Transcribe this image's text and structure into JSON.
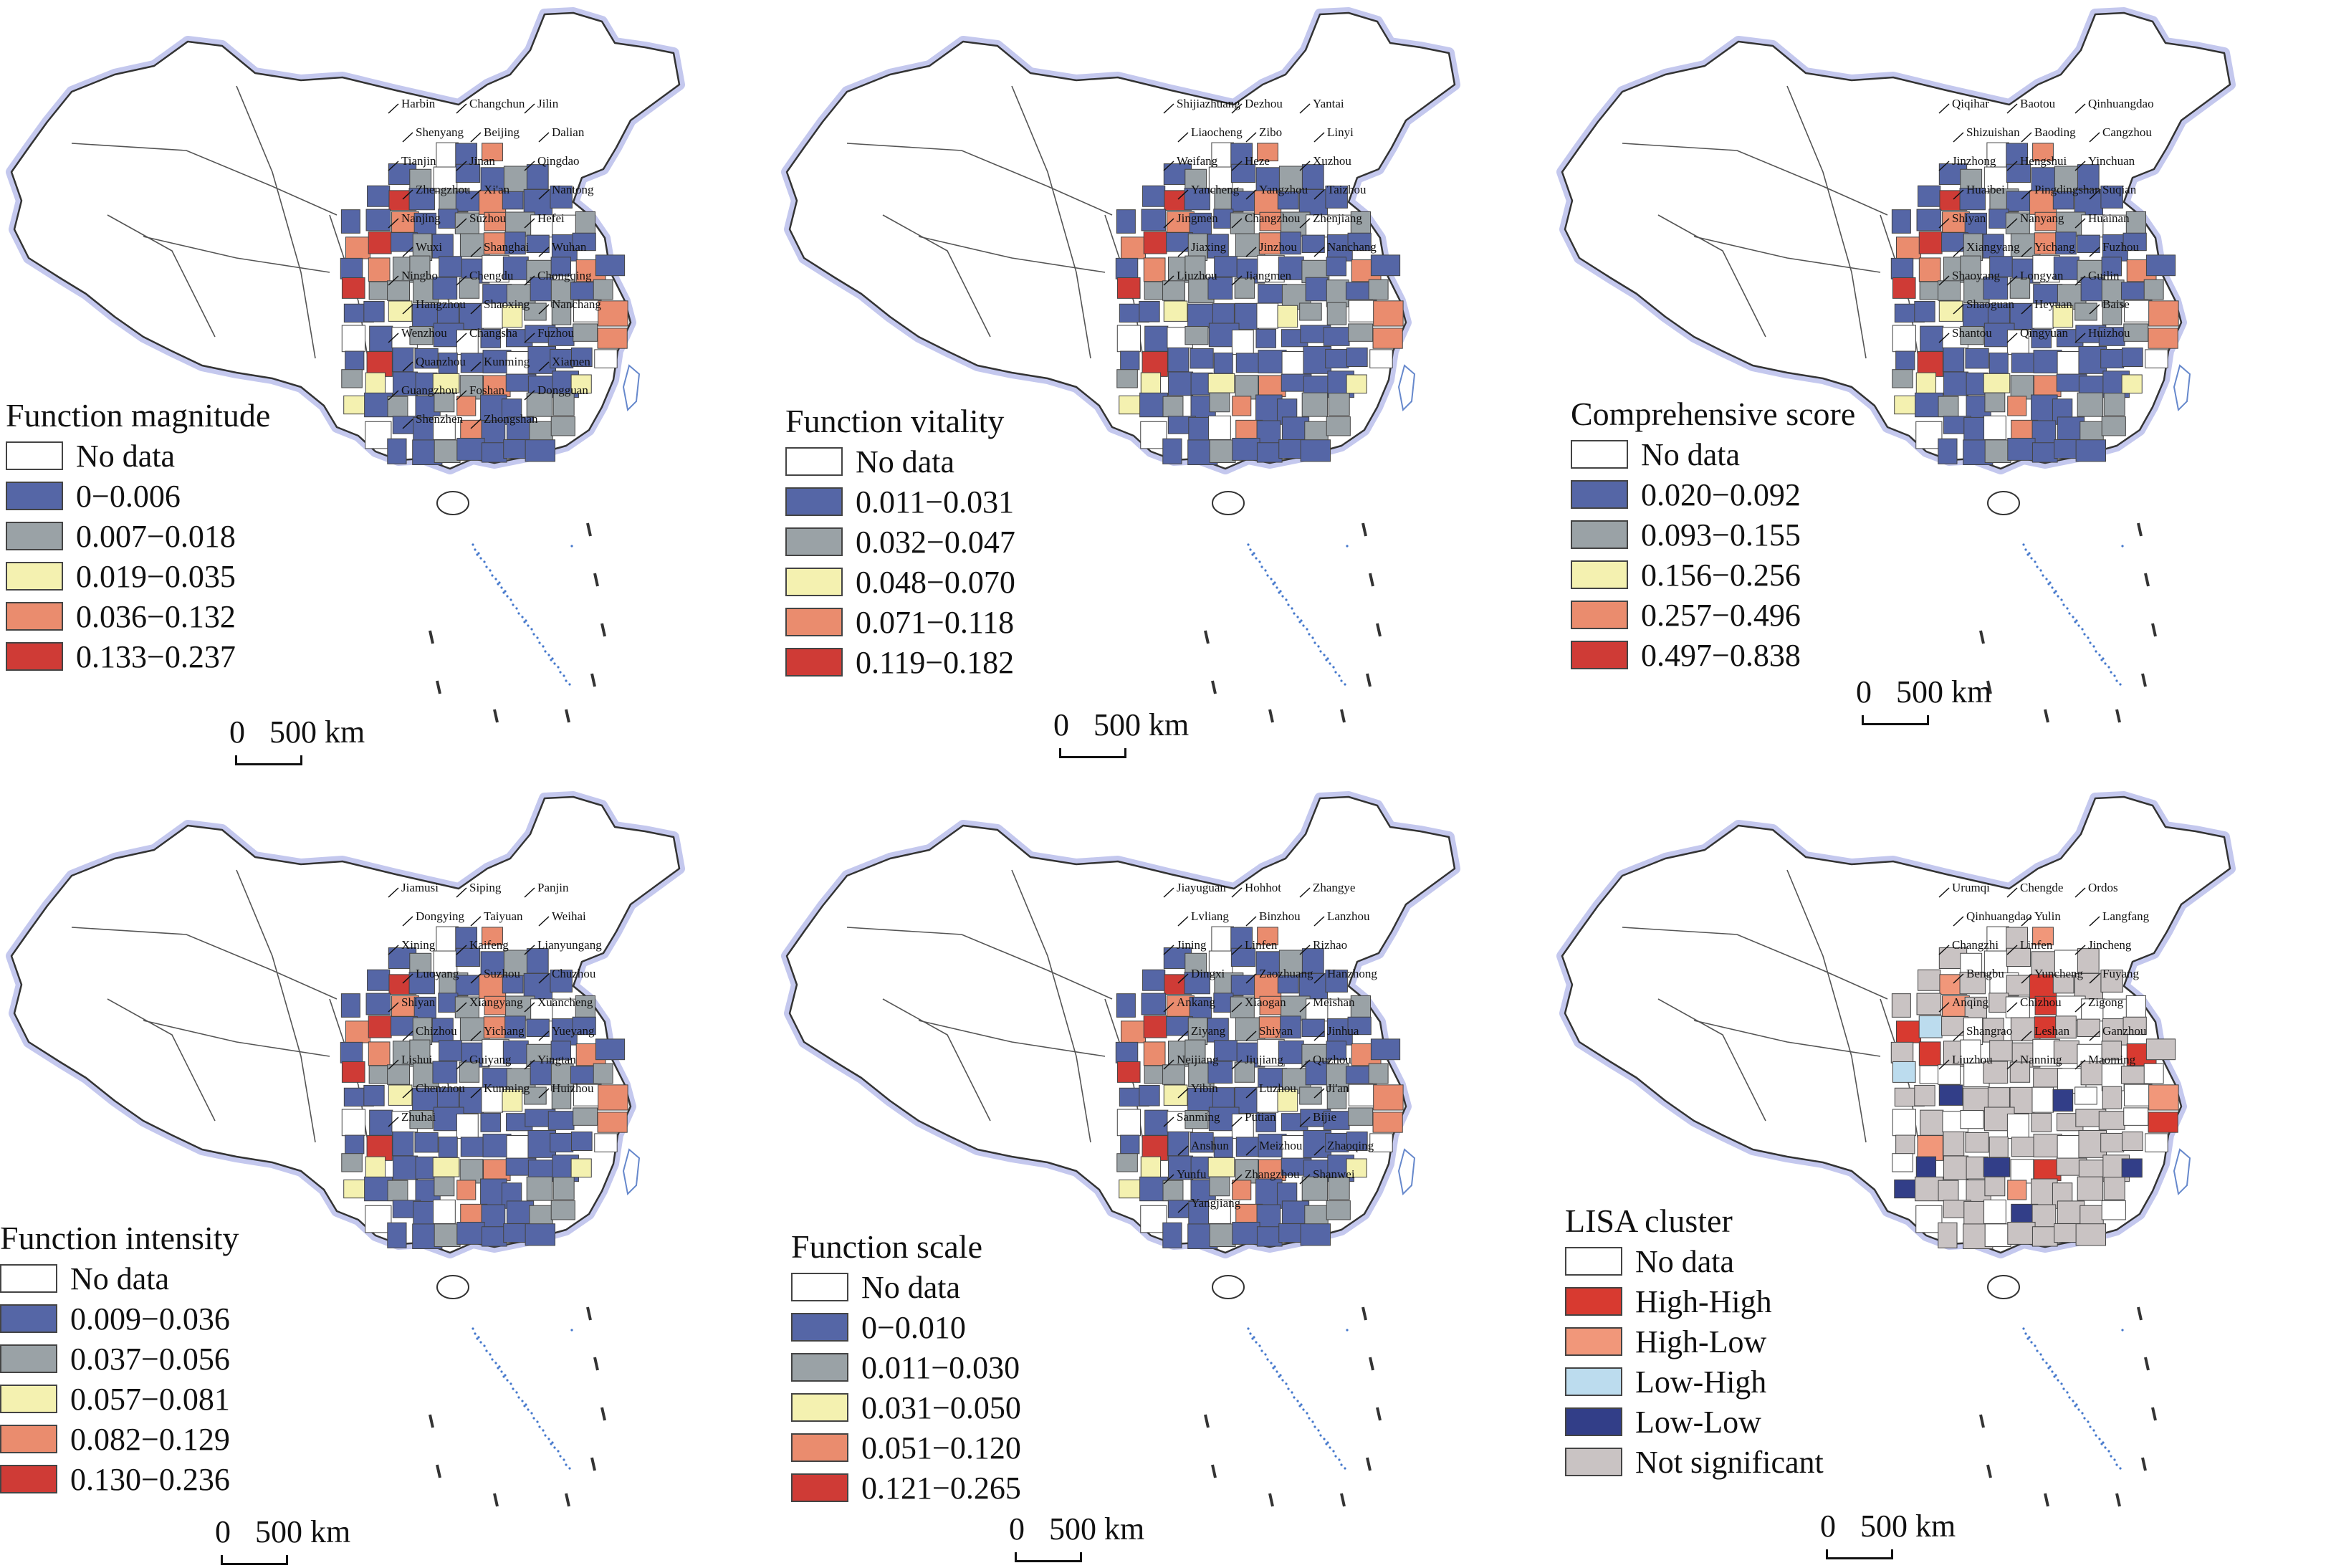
{
  "colors": {
    "no_data": "#ffffff",
    "class1": "#5566a6",
    "class2": "#9aa2a6",
    "class3": "#f4f1b0",
    "class4": "#ea8c6e",
    "class5": "#cf3b36",
    "lisa_high_high": "#d83a30",
    "lisa_high_low": "#f1977a",
    "lisa_low_high": "#bcdcee",
    "lisa_low_low": "#323e88",
    "lisa_not_significant": "#c9c3c3"
  },
  "scalebar": {
    "zero": "0",
    "length": "500 km"
  },
  "panels": [
    {
      "id": "magnitude",
      "legend_title": "Function magnitude",
      "legend": [
        {
          "label": "No data",
          "color": "#ffffff"
        },
        {
          "label": "0−0.006",
          "color": "#5566a6"
        },
        {
          "label": "0.007−0.018",
          "color": "#9aa2a6"
        },
        {
          "label": "0.019−0.035",
          "color": "#f4f1b0"
        },
        {
          "label": "0.036−0.132",
          "color": "#ea8c6e"
        },
        {
          "label": "0.133−0.237",
          "color": "#cf3b36"
        }
      ],
      "cities": [
        "Harbin",
        "Changchun",
        "Jilin",
        "Shenyang",
        "Beijing",
        "Dalian",
        "Tianjin",
        "Jinan",
        "Qingdao",
        "Zhengzhou",
        "Xi'an",
        "Nantong",
        "Nanjing",
        "Suzhou",
        "Hefei",
        "Wuxi",
        "Shanghai",
        "Wuhan",
        "Ningbo",
        "Chengdu",
        "Chongqing",
        "Hangzhou",
        "Shaoxing",
        "Nanchang",
        "Wenzhou",
        "Changsha",
        "Fuzhou",
        "Quanzhou",
        "Kunming",
        "Xiamen",
        "Guangzhou",
        "Foshan",
        "Dongguan",
        "Shenzhen",
        "Zhongshan"
      ]
    },
    {
      "id": "vitality",
      "legend_title": "Function vitality",
      "legend": [
        {
          "label": "No data",
          "color": "#ffffff"
        },
        {
          "label": "0.011−0.031",
          "color": "#5566a6"
        },
        {
          "label": "0.032−0.047",
          "color": "#9aa2a6"
        },
        {
          "label": "0.048−0.070",
          "color": "#f4f1b0"
        },
        {
          "label": "0.071−0.118",
          "color": "#ea8c6e"
        },
        {
          "label": "0.119−0.182",
          "color": "#cf3b36"
        }
      ],
      "cities": [
        "Shijiazhuang",
        "Dezhou",
        "Yantai",
        "Liaocheng",
        "Zibo",
        "Linyi",
        "Weifang",
        "Heze",
        "Xuzhou",
        "Yancheng",
        "Yangzhou",
        "Taizhou",
        "Jingmen",
        "Changzhou",
        "Zhenjiang",
        "Jiaxing",
        "Jinzhou",
        "Nanchang",
        "Liuzhou",
        "Jiangmen"
      ]
    },
    {
      "id": "comprehensive",
      "legend_title": "Comprehensive score",
      "legend": [
        {
          "label": "No data",
          "color": "#ffffff"
        },
        {
          "label": "0.020−0.092",
          "color": "#5566a6"
        },
        {
          "label": "0.093−0.155",
          "color": "#9aa2a6"
        },
        {
          "label": "0.156−0.256",
          "color": "#f4f1b0"
        },
        {
          "label": "0.257−0.496",
          "color": "#ea8c6e"
        },
        {
          "label": "0.497−0.838",
          "color": "#cf3b36"
        }
      ],
      "cities": [
        "Qiqihar",
        "Baotou",
        "Qinhuangdao",
        "Shizuishan",
        "Baoding",
        "Cangzhou",
        "Jinzhong",
        "Hengshui",
        "Yinchuan",
        "Huaibei",
        "Pingdingshan",
        "Suqian",
        "Shiyan",
        "Nanyang",
        "Huainan",
        "Xiangyang",
        "Yichang",
        "Fuzhou",
        "Shaoyang",
        "Longyan",
        "Guilin",
        "Shaoguan",
        "Heyuan",
        "Baise",
        "Shantou",
        "Qingyuan",
        "Huizhou"
      ]
    },
    {
      "id": "intensity",
      "legend_title": "Function intensity",
      "legend": [
        {
          "label": "No data",
          "color": "#ffffff"
        },
        {
          "label": "0.009−0.036",
          "color": "#5566a6"
        },
        {
          "label": "0.037−0.056",
          "color": "#9aa2a6"
        },
        {
          "label": "0.057−0.081",
          "color": "#f4f1b0"
        },
        {
          "label": "0.082−0.129",
          "color": "#ea8c6e"
        },
        {
          "label": "0.130−0.236",
          "color": "#cf3b36"
        }
      ],
      "cities": [
        "Jiamusi",
        "Siping",
        "Panjin",
        "Dongying",
        "Taiyuan",
        "Weihai",
        "Xining",
        "Kaifeng",
        "Lianyungang",
        "Luoyang",
        "Suzhou",
        "Chuzhou",
        "Shiyan",
        "Xiangyang",
        "Xuancheng",
        "Chizhou",
        "Yichang",
        "Yueyang",
        "Lishui",
        "Guiyang",
        "Yingtan",
        "Chenzhou",
        "Kunming",
        "Huizhou",
        "Zhuhai"
      ]
    },
    {
      "id": "scale",
      "legend_title": "Function scale",
      "legend": [
        {
          "label": "No data",
          "color": "#ffffff"
        },
        {
          "label": "0−0.010",
          "color": "#5566a6"
        },
        {
          "label": "0.011−0.030",
          "color": "#9aa2a6"
        },
        {
          "label": "0.031−0.050",
          "color": "#f4f1b0"
        },
        {
          "label": "0.051−0.120",
          "color": "#ea8c6e"
        },
        {
          "label": "0.121−0.265",
          "color": "#cf3b36"
        }
      ],
      "cities": [
        "Jiayuguan",
        "Hohhot",
        "Zhangye",
        "Lvliang",
        "Binzhou",
        "Lanzhou",
        "Jining",
        "Linfen",
        "Rizhao",
        "Dingxi",
        "Zaozhuang",
        "Hanzhong",
        "Ankang",
        "Xiaogan",
        "Meishan",
        "Ziyang",
        "Shiyan",
        "Jinhua",
        "Neijiang",
        "Jiujiang",
        "Quzhou",
        "Yibin",
        "Luzhou",
        "Ji'an",
        "Sanming",
        "Putian",
        "Bijie",
        "Anshun",
        "Meizhou",
        "Zhaoqing",
        "Yunfu",
        "Zhangzhou",
        "Shanwei",
        "Yangjiang"
      ]
    },
    {
      "id": "lisa",
      "legend_title": "LISA cluster",
      "legend": [
        {
          "label": "No data",
          "color": "#ffffff"
        },
        {
          "label": "High-High",
          "color": "#d83a30"
        },
        {
          "label": "High-Low",
          "color": "#f1977a"
        },
        {
          "label": "Low-High",
          "color": "#bcdcee"
        },
        {
          "label": "Low-Low",
          "color": "#323e88"
        },
        {
          "label": "Not significant",
          "color": "#c9c3c3"
        }
      ],
      "cities": [
        "Urumqi",
        "Chengde",
        "Ordos",
        "Qinhuangdao",
        "Yulin",
        "Langfang",
        "Changzhi",
        "Linfen",
        "Jincheng",
        "Bengbu",
        "Yuncheng",
        "Fuyang",
        "Anqing",
        "Chizhou",
        "Zigong",
        "Shangrao",
        "Leshan",
        "Ganzhou",
        "Liuzhou",
        "Nanning",
        "Maoming"
      ]
    }
  ]
}
